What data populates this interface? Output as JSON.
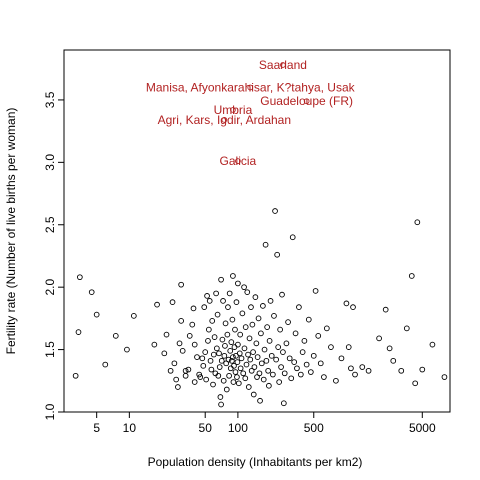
{
  "chart_data": {
    "type": "scatter",
    "title": "",
    "xlabel": "Population density (Inhabitants per km2)",
    "ylabel": "Fertility rate (Number of live births per woman)",
    "x_scale": "log",
    "xlim": [
      2.5,
      9000
    ],
    "ylim": [
      1.0,
      3.9
    ],
    "x_ticks": [
      5,
      10,
      50,
      100,
      500,
      5000
    ],
    "x_tick_labels": [
      "5",
      "10",
      "50",
      "100",
      "500",
      "5000"
    ],
    "y_ticks": [
      1.0,
      1.5,
      2.0,
      2.5,
      3.0,
      3.5
    ],
    "y_tick_labels": [
      "1.0",
      "1.5",
      "2.0",
      "2.5",
      "3.0",
      "3.5"
    ],
    "grid": false,
    "point_color": "#000000",
    "annotation_color": "#b22222",
    "points": [
      [
        3.2,
        1.29
      ],
      [
        3.4,
        1.64
      ],
      [
        3.5,
        2.08
      ],
      [
        4.5,
        1.96
      ],
      [
        5.0,
        1.78
      ],
      [
        6.0,
        1.38
      ],
      [
        7.5,
        1.61
      ],
      [
        9.5,
        1.5
      ],
      [
        11,
        1.77
      ],
      [
        17,
        1.54
      ],
      [
        18,
        1.86
      ],
      [
        21,
        1.47
      ],
      [
        22,
        1.62
      ],
      [
        24,
        1.33
      ],
      [
        25,
        1.88
      ],
      [
        26,
        1.39
      ],
      [
        27,
        1.26
      ],
      [
        28,
        1.2
      ],
      [
        29,
        1.55
      ],
      [
        30,
        1.73
      ],
      [
        30,
        2.02
      ],
      [
        31,
        1.49
      ],
      [
        33,
        1.33
      ],
      [
        33,
        1.29
      ],
      [
        35,
        1.34
      ],
      [
        36,
        1.61
      ],
      [
        38,
        1.7
      ],
      [
        39,
        1.83
      ],
      [
        40,
        1.54
      ],
      [
        40,
        1.24
      ],
      [
        42,
        1.44
      ],
      [
        44,
        1.3
      ],
      [
        45,
        1.28
      ],
      [
        47,
        1.43
      ],
      [
        48,
        1.37
      ],
      [
        49,
        1.84
      ],
      [
        50,
        1.48
      ],
      [
        51,
        1.26
      ],
      [
        52,
        1.93
      ],
      [
        53,
        1.57
      ],
      [
        54,
        1.66
      ],
      [
        55,
        1.89
      ],
      [
        56,
        1.41
      ],
      [
        57,
        1.34
      ],
      [
        58,
        1.73
      ],
      [
        59,
        1.22
      ],
      [
        60,
        1.46
      ],
      [
        61,
        1.6
      ],
      [
        62,
        1.31
      ],
      [
        63,
        1.95
      ],
      [
        64,
        1.51
      ],
      [
        65,
        1.78
      ],
      [
        66,
        1.29
      ],
      [
        67,
        1.47
      ],
      [
        68,
        1.36
      ],
      [
        69,
        1.12
      ],
      [
        70,
        1.06
      ],
      [
        70,
        2.06
      ],
      [
        71,
        1.41
      ],
      [
        72,
        1.58
      ],
      [
        73,
        1.89
      ],
      [
        74,
        1.25
      ],
      [
        75,
        1.45
      ],
      [
        76,
        1.53
      ],
      [
        77,
        1.71
      ],
      [
        78,
        1.39
      ],
      [
        79,
        1.18
      ],
      [
        80,
        1.62
      ],
      [
        81,
        1.84
      ],
      [
        82,
        1.42
      ],
      [
        83,
        1.29
      ],
      [
        84,
        1.95
      ],
      [
        85,
        1.49
      ],
      [
        86,
        1.35
      ],
      [
        87,
        1.56
      ],
      [
        88,
        1.41
      ],
      [
        89,
        1.74
      ],
      [
        90,
        2.09
      ],
      [
        90,
        1.44
      ],
      [
        91,
        1.24
      ],
      [
        92,
        1.37
      ],
      [
        93,
        1.52
      ],
      [
        94,
        1.66
      ],
      [
        95,
        1.32
      ],
      [
        96,
        1.45
      ],
      [
        97,
        1.88
      ],
      [
        98,
        1.28
      ],
      [
        99,
        1.4
      ],
      [
        100,
        2.03
      ],
      [
        100,
        1.54
      ],
      [
        102,
        1.23
      ],
      [
        104,
        1.47
      ],
      [
        105,
        1.62
      ],
      [
        106,
        1.35
      ],
      [
        108,
        1.43
      ],
      [
        110,
        1.79
      ],
      [
        112,
        1.31
      ],
      [
        114,
        2.0
      ],
      [
        115,
        1.51
      ],
      [
        117,
        1.27
      ],
      [
        118,
        1.68
      ],
      [
        120,
        1.38
      ],
      [
        122,
        1.96
      ],
      [
        124,
        1.46
      ],
      [
        126,
        1.2
      ],
      [
        128,
        1.59
      ],
      [
        130,
        1.42
      ],
      [
        132,
        1.84
      ],
      [
        134,
        1.33
      ],
      [
        136,
        1.7
      ],
      [
        138,
        1.48
      ],
      [
        140,
        1.14
      ],
      [
        142,
        1.36
      ],
      [
        145,
        1.92
      ],
      [
        148,
        1.55
      ],
      [
        150,
        1.28
      ],
      [
        152,
        1.44
      ],
      [
        155,
        1.75
      ],
      [
        158,
        1.31
      ],
      [
        160,
        1.09
      ],
      [
        163,
        1.63
      ],
      [
        166,
        1.39
      ],
      [
        170,
        1.85
      ],
      [
        173,
        1.26
      ],
      [
        176,
        1.5
      ],
      [
        180,
        2.34
      ],
      [
        183,
        1.41
      ],
      [
        186,
        1.68
      ],
      [
        190,
        1.33
      ],
      [
        193,
        1.21
      ],
      [
        196,
        1.57
      ],
      [
        200,
        1.89
      ],
      [
        205,
        1.45
      ],
      [
        210,
        1.3
      ],
      [
        215,
        1.77
      ],
      [
        220,
        2.61
      ],
      [
        225,
        1.42
      ],
      [
        230,
        2.26
      ],
      [
        235,
        1.52
      ],
      [
        240,
        1.24
      ],
      [
        245,
        1.66
      ],
      [
        250,
        1.36
      ],
      [
        255,
        1.94
      ],
      [
        260,
        1.48
      ],
      [
        265,
        1.07
      ],
      [
        270,
        1.31
      ],
      [
        280,
        1.55
      ],
      [
        290,
        1.72
      ],
      [
        300,
        1.43
      ],
      [
        310,
        1.27
      ],
      [
        320,
        2.4
      ],
      [
        330,
        1.4
      ],
      [
        340,
        1.63
      ],
      [
        350,
        1.35
      ],
      [
        365,
        1.84
      ],
      [
        380,
        1.3
      ],
      [
        395,
        1.48
      ],
      [
        410,
        1.57
      ],
      [
        430,
        1.38
      ],
      [
        450,
        1.74
      ],
      [
        470,
        1.32
      ],
      [
        500,
        1.45
      ],
      [
        520,
        1.97
      ],
      [
        550,
        1.61
      ],
      [
        580,
        1.39
      ],
      [
        620,
        1.28
      ],
      [
        660,
        1.67
      ],
      [
        720,
        1.52
      ],
      [
        800,
        1.25
      ],
      [
        900,
        1.43
      ],
      [
        1000,
        1.87
      ],
      [
        1050,
        1.52
      ],
      [
        1100,
        1.35
      ],
      [
        1150,
        1.84
      ],
      [
        1200,
        1.3
      ],
      [
        1400,
        1.36
      ],
      [
        1600,
        1.33
      ],
      [
        2000,
        1.59
      ],
      [
        2300,
        1.82
      ],
      [
        2500,
        1.51
      ],
      [
        2700,
        1.41
      ],
      [
        3200,
        1.33
      ],
      [
        3600,
        1.67
      ],
      [
        4000,
        2.09
      ],
      [
        4300,
        1.23
      ],
      [
        4500,
        2.52
      ],
      [
        5000,
        1.34
      ],
      [
        6200,
        1.54
      ],
      [
        8000,
        1.28
      ]
    ],
    "annotations": [
      {
        "label": "Saarland",
        "x": 260,
        "y": 3.78
      },
      {
        "label": "Manisa, Afyonkarahisar, K?tahya, Usak",
        "x": 130,
        "y": 3.6
      },
      {
        "label": "Guadeloupe (FR)",
        "x": 430,
        "y": 3.49
      },
      {
        "label": "Umbria",
        "x": 90,
        "y": 3.42
      },
      {
        "label": "Agri, Kars, Igdir, Ardahan",
        "x": 75,
        "y": 3.34
      },
      {
        "label": "Galicia",
        "x": 100,
        "y": 3.01
      }
    ]
  }
}
